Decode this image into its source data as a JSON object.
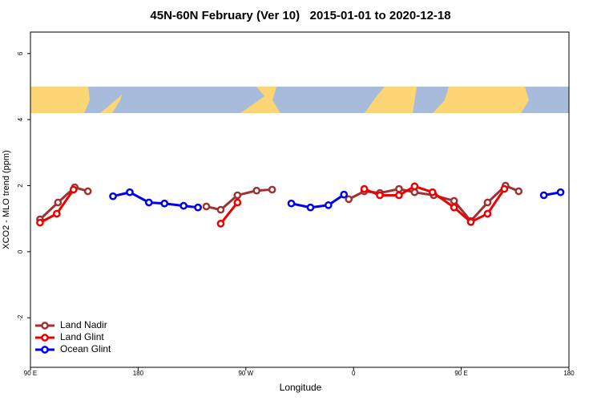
{
  "chart_data": {
    "type": "line",
    "title": "45N-60N February (Ver 10)   2015-01-01 to 2020-12-18",
    "xlabel": "Longitude",
    "ylabel": "XCO2 - MLO trend (ppm)",
    "xlim": [
      90,
      540
    ],
    "ylim": [
      -3.5,
      6.65
    ],
    "xticks": [
      {
        "value": 90,
        "label": "90 E"
      },
      {
        "value": 180,
        "label": "180"
      },
      {
        "value": 270,
        "label": "90 W"
      },
      {
        "value": 360,
        "label": "0"
      },
      {
        "value": 450,
        "label": "90 E"
      },
      {
        "value": 540,
        "label": "180"
      }
    ],
    "yticks": [
      -2,
      0,
      2,
      4,
      6
    ],
    "legend": "bottom-left",
    "series": [
      {
        "name": "Land Nadir",
        "color": "#9e3232",
        "x": [
          98,
          113,
          127,
          138,
          null,
          237,
          249,
          263,
          279,
          292,
          null,
          356,
          369,
          382,
          398,
          411,
          427,
          444,
          458,
          472,
          487,
          498
        ],
        "values": [
          0.98,
          1.49,
          1.95,
          1.83,
          null,
          1.37,
          1.27,
          1.71,
          1.85,
          1.88,
          null,
          1.59,
          1.83,
          1.78,
          1.9,
          1.8,
          1.71,
          1.54,
          0.93,
          1.49,
          2.0,
          1.83
        ]
      },
      {
        "name": "Land Glint",
        "color": "#ee0000",
        "x": [
          98,
          112,
          126,
          null,
          249,
          263,
          null,
          369,
          382,
          398,
          411,
          426,
          444,
          458,
          472,
          486
        ],
        "values": [
          0.88,
          1.15,
          1.88,
          null,
          0.85,
          1.49,
          null,
          1.9,
          1.71,
          1.71,
          1.98,
          1.8,
          1.34,
          0.9,
          1.15,
          1.9
        ]
      },
      {
        "name": "Ocean Glint",
        "color": "#0000ee",
        "x": [
          159,
          173,
          189,
          202,
          218,
          230,
          null,
          308,
          324,
          339,
          352,
          null,
          519,
          533
        ],
        "values": [
          1.68,
          1.8,
          1.49,
          1.46,
          1.39,
          1.34,
          null,
          1.46,
          1.34,
          1.41,
          1.73,
          null,
          1.71,
          1.8
        ]
      }
    ]
  }
}
